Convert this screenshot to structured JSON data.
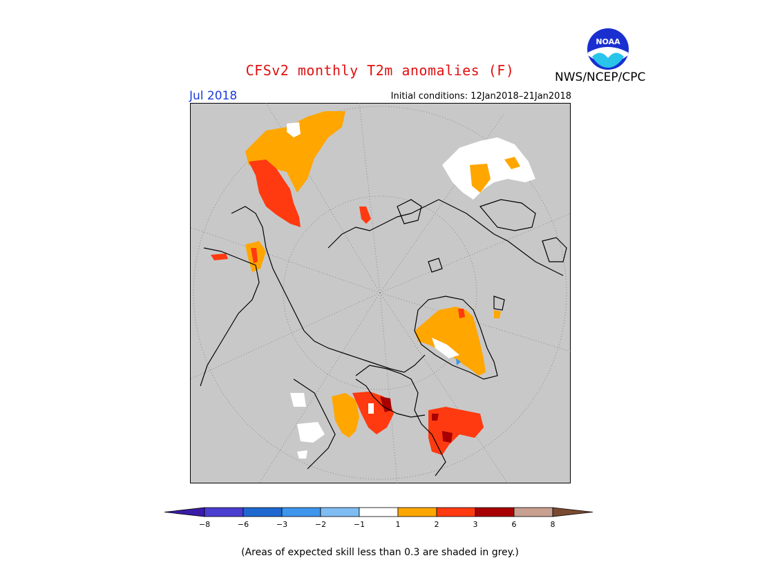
{
  "title": "CFSv2 monthly T2m anomalies (F)",
  "agency": "NWS/NCEP/CPC",
  "logo_text": "NOAA",
  "month": "Jul 2018",
  "initial_conditions": "Initial conditions: 12Jan2018–21Jan2018",
  "footnote": "(Areas of expected skill less than 0.3 are shaded in grey.)",
  "colors": {
    "title": "#e01010",
    "month": "#1a3cd8",
    "map_background": "#c8c8c8"
  },
  "legend": {
    "ticks": [
      "−8",
      "−6",
      "−3",
      "−2",
      "−1",
      "1",
      "2",
      "3",
      "6",
      "8"
    ],
    "bins": [
      {
        "color": "#3a1ca8"
      },
      {
        "color": "#4a3ed0"
      },
      {
        "color": "#1f68d0"
      },
      {
        "color": "#3e95ec"
      },
      {
        "color": "#7fbcf2"
      },
      {
        "color": "#ffffff"
      },
      {
        "color": "#ffa600"
      },
      {
        "color": "#ff3a10"
      },
      {
        "color": "#a80000"
      },
      {
        "color": "#c8a090"
      },
      {
        "color": "#7a4a30"
      }
    ]
  }
}
